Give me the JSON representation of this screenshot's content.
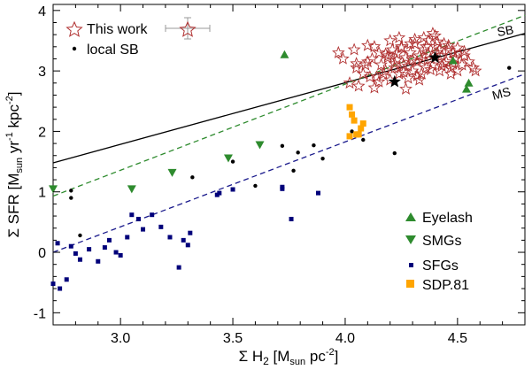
{
  "chart_data": {
    "type": "scatter",
    "xlabel": {
      "main": "Σ H",
      "sub2": "2",
      "open": " [M",
      "sub_sun": "sun",
      "unit": " pc",
      "sup": "-2",
      "close": "]"
    },
    "ylabel": {
      "main": "Σ SFR [M",
      "sub_sun": "sun",
      "unit1": " yr",
      "sup1": "-1",
      "unit2": " kpc",
      "sup2": "-2",
      "close": "]"
    },
    "xlim": [
      2.7,
      4.8
    ],
    "ylim": [
      -1.2,
      4.1
    ],
    "xticks": [
      3.0,
      3.5,
      4.0,
      4.5
    ],
    "xtick_labels": [
      "3.0",
      "3.5",
      "4.0",
      "4.5"
    ],
    "yticks": [
      -1,
      0,
      1,
      2,
      3,
      4
    ],
    "ytick_labels": [
      "-1",
      "0",
      "1",
      "2",
      "3",
      "4"
    ],
    "lines": [
      {
        "name": "SB",
        "label": "SB",
        "x": [
          2.7,
          4.8
        ],
        "y": [
          1.48,
          3.62
        ],
        "color": "#000000",
        "style": "solid"
      },
      {
        "name": "MS",
        "label": "MS",
        "x": [
          2.7,
          4.8
        ],
        "y": [
          0.0,
          2.95
        ],
        "color": "#1a1a8c",
        "style": "dashed"
      },
      {
        "name": "SMG relation",
        "label": "",
        "x": [
          2.7,
          4.8
        ],
        "y": [
          0.93,
          3.92
        ],
        "color": "#2e8b2e",
        "style": "dashed"
      }
    ],
    "series": [
      {
        "name": "This work",
        "marker": "open-star",
        "color": "#b03030",
        "x": [
          4.05,
          4.08,
          4.1,
          4.12,
          4.14,
          4.15,
          4.16,
          4.18,
          4.19,
          4.2,
          4.21,
          4.22,
          4.23,
          4.24,
          4.25,
          4.26,
          4.27,
          4.28,
          4.29,
          4.3,
          4.31,
          4.32,
          4.33,
          4.34,
          4.35,
          4.36,
          4.37,
          4.38,
          4.39,
          4.4,
          4.41,
          4.42,
          4.43,
          4.44,
          4.45,
          4.46,
          4.47,
          4.48,
          4.49,
          4.5,
          4.52,
          4.53,
          4.55,
          4.57,
          4.58,
          3.97,
          3.99,
          4.02,
          4.04,
          4.06,
          4.09,
          4.11,
          4.13,
          4.17,
          4.2,
          4.23,
          4.26,
          4.29,
          4.32,
          4.35,
          4.38,
          4.41,
          4.44,
          4.47,
          4.5,
          4.53,
          4.05,
          4.1,
          4.15,
          4.18,
          4.22,
          4.25,
          4.28,
          4.31,
          4.34,
          4.37,
          4.4,
          4.43,
          4.46,
          4.49,
          4.13,
          4.19,
          4.24,
          4.3,
          4.36,
          4.42,
          4.48,
          4.27,
          4.33,
          4.39
        ],
        "y": [
          3.05,
          2.95,
          3.15,
          3.2,
          2.9,
          3.3,
          3.1,
          3.0,
          3.25,
          2.85,
          3.35,
          3.05,
          3.18,
          2.95,
          3.4,
          3.1,
          3.22,
          2.88,
          3.3,
          3.0,
          3.45,
          3.15,
          3.25,
          2.95,
          3.35,
          3.05,
          3.5,
          3.2,
          3.1,
          3.4,
          3.3,
          3.0,
          3.25,
          3.45,
          3.15,
          3.35,
          3.05,
          3.3,
          3.2,
          3.0,
          3.1,
          3.25,
          3.15,
          3.05,
          3.0,
          3.3,
          3.2,
          2.8,
          3.35,
          2.75,
          3.1,
          2.9,
          3.4,
          2.95,
          3.5,
          3.28,
          2.98,
          3.45,
          2.92,
          3.55,
          3.02,
          3.48,
          3.12,
          2.95,
          3.38,
          3.32,
          3.12,
          3.42,
          2.82,
          3.28,
          3.12,
          3.38,
          3.08,
          3.52,
          3.18,
          3.28,
          3.58,
          3.08,
          3.42,
          3.22,
          2.72,
          3.22,
          3.55,
          3.18,
          3.4,
          3.35,
          3.12,
          2.7,
          2.85,
          3.62
        ]
      },
      {
        "name": "This work (highlighted)",
        "marker": "filled-star",
        "color": "#000000",
        "x": [
          4.22,
          4.4
        ],
        "y": [
          2.82,
          3.22
        ]
      },
      {
        "name": "local SB",
        "marker": "dot",
        "color": "#000000",
        "x": [
          2.78,
          2.78,
          2.82,
          3.32,
          3.5,
          3.6,
          3.72,
          3.77,
          3.79,
          3.86,
          3.9,
          4.03,
          4.08,
          4.22,
          4.73
        ],
        "y": [
          1.02,
          0.9,
          0.28,
          1.24,
          1.5,
          1.1,
          1.76,
          1.35,
          1.65,
          1.77,
          1.55,
          2.0,
          1.86,
          1.64,
          3.05
        ]
      },
      {
        "name": "Eyelash",
        "marker": "triangle-up",
        "color": "#2e8b2e",
        "x": [
          3.73,
          4.48,
          4.54,
          4.55
        ],
        "y": [
          3.27,
          3.17,
          2.7,
          2.8
        ]
      },
      {
        "name": "SMGs",
        "marker": "triangle-down",
        "color": "#2e8b2e",
        "x": [
          2.7,
          3.05,
          3.23,
          3.48,
          3.62
        ],
        "y": [
          1.05,
          1.05,
          1.32,
          1.56,
          1.78
        ]
      },
      {
        "name": "SFGs",
        "marker": "square",
        "color": "#00007a",
        "x": [
          2.7,
          2.72,
          2.73,
          2.76,
          2.78,
          2.8,
          2.82,
          2.86,
          2.9,
          2.93,
          2.95,
          2.98,
          3.0,
          3.03,
          3.05,
          3.08,
          3.1,
          3.14,
          3.18,
          3.22,
          3.26,
          3.28,
          3.3,
          3.31,
          3.43,
          3.44,
          3.5,
          3.72,
          3.72,
          3.76,
          3.88
        ],
        "y": [
          -0.52,
          0.15,
          -0.6,
          -0.45,
          0.1,
          -0.02,
          -0.12,
          0.05,
          -0.15,
          0.08,
          0.2,
          0.0,
          -0.05,
          0.25,
          0.62,
          0.55,
          0.38,
          0.62,
          0.42,
          0.25,
          -0.25,
          0.2,
          0.12,
          0.32,
          0.95,
          0.98,
          1.04,
          1.05,
          1.08,
          0.55,
          0.98
        ]
      },
      {
        "name": "SDP.81",
        "marker": "square-large",
        "color": "#ffa500",
        "x": [
          4.02,
          4.03,
          4.04,
          4.02,
          4.05,
          4.07,
          4.08,
          4.06
        ],
        "y": [
          2.4,
          2.28,
          2.18,
          1.92,
          1.95,
          2.05,
          2.13,
          1.95
        ]
      }
    ],
    "legend": {
      "top_left": [
        {
          "name": "This work",
          "label": "This work",
          "marker": "open-star",
          "color": "#b03030",
          "errorbar_color": "#999999"
        },
        {
          "name": "local SB",
          "label": "local SB",
          "marker": "dot",
          "color": "#000000"
        }
      ],
      "bottom_right": [
        {
          "name": "Eyelash",
          "label": "Eyelash",
          "marker": "triangle-up",
          "color": "#2e8b2e"
        },
        {
          "name": "SMGs",
          "label": "SMGs",
          "marker": "triangle-down",
          "color": "#2e8b2e"
        },
        {
          "name": "SFGs",
          "label": "SFGs",
          "marker": "square",
          "color": "#00007a"
        },
        {
          "name": "SDP.81",
          "label": "SDP.81",
          "marker": "square-large",
          "color": "#ffa500"
        }
      ]
    }
  }
}
